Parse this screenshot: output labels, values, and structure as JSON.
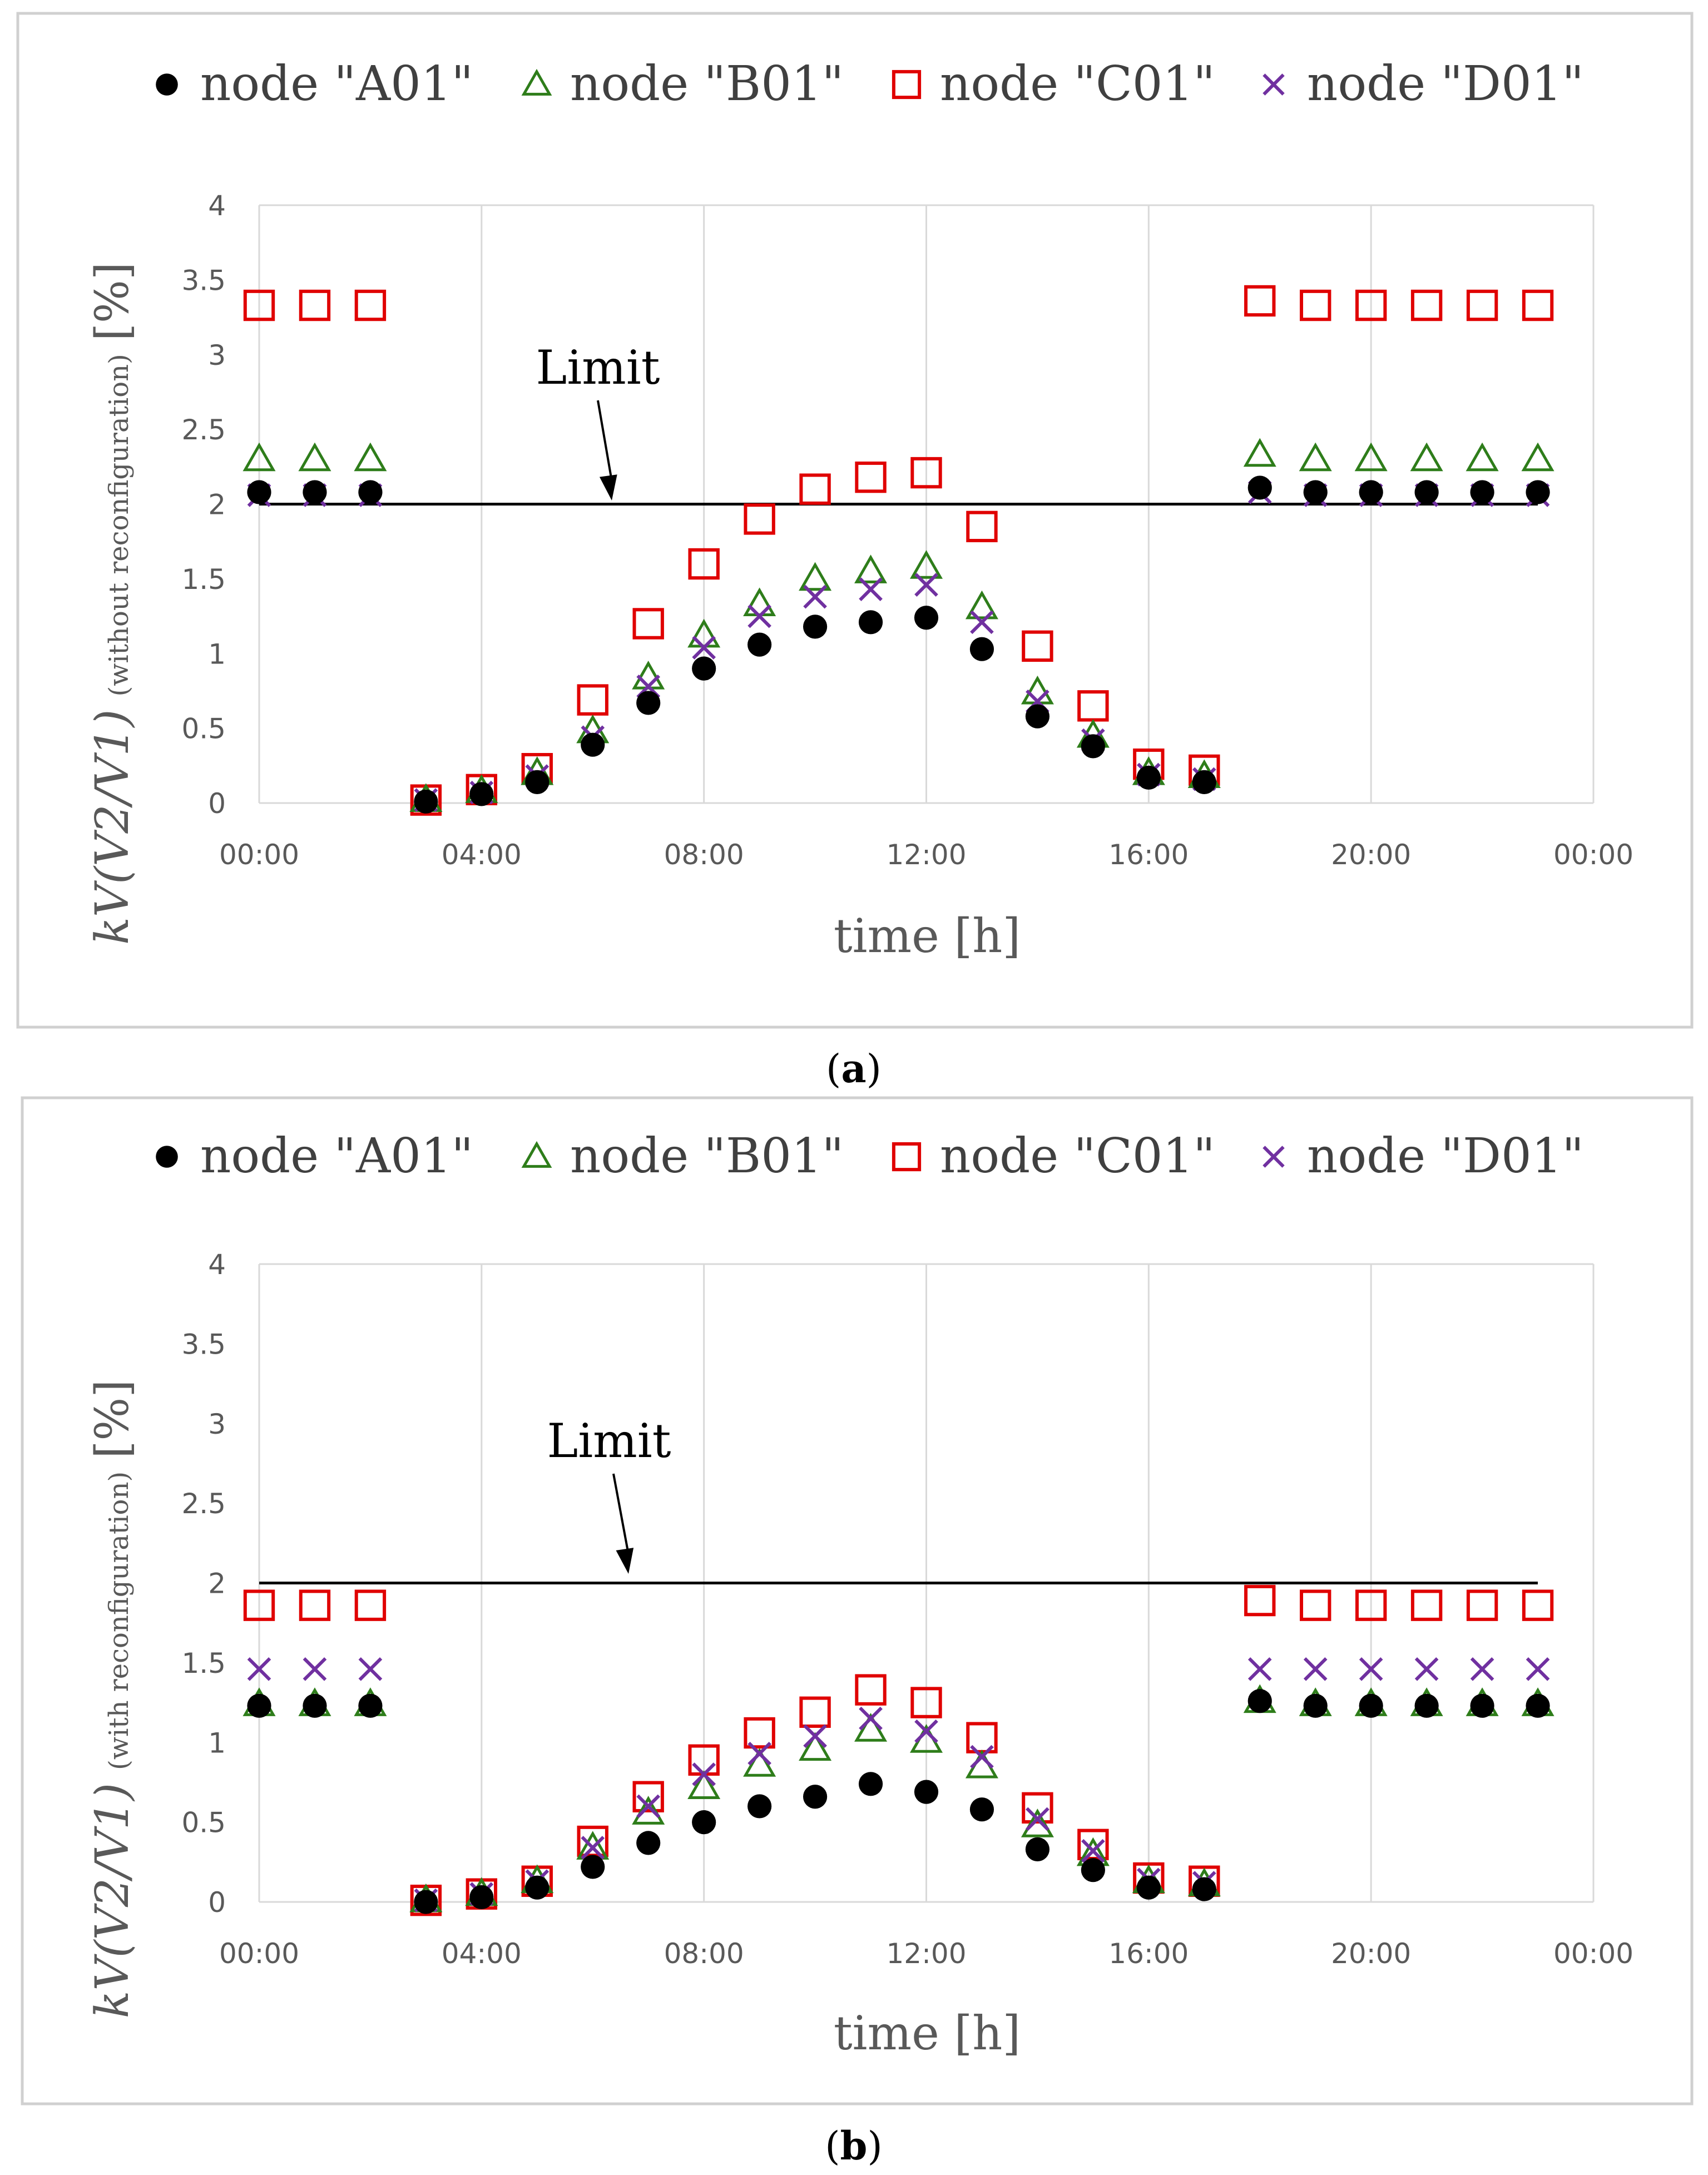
{
  "colors": {
    "A01": "#000000",
    "B01": "#2e7d1a",
    "C01": "#e00000",
    "D01": "#7030a0",
    "grid": "#d9d9d9",
    "axis_text": "#595959",
    "frame": "#d0d0d0",
    "limit_line": "#000000"
  },
  "chart_data": [
    {
      "type": "scatter",
      "panel_label": "a",
      "xlabel": "time [h]",
      "ylabel": "kV(V2/V1)",
      "ylabel_qualifier": "(without reconfiguration)",
      "ylabel_unit": "[%]",
      "x_ticks": [
        "00:00",
        "04:00",
        "08:00",
        "12:00",
        "16:00",
        "20:00",
        "00:00"
      ],
      "xlim": [
        0,
        24
      ],
      "ylim": [
        0,
        4
      ],
      "y_ticks": [
        "0",
        "0.5",
        "1",
        "1.5",
        "2",
        "2.5",
        "3",
        "3.5",
        "4"
      ],
      "grid": "vertical",
      "limit": {
        "label": "Limit",
        "value": 2
      },
      "x": [
        0,
        1,
        2,
        3,
        4,
        5,
        6,
        7,
        8,
        9,
        10,
        11,
        12,
        13,
        14,
        15,
        16,
        17,
        18,
        19,
        20,
        21,
        22,
        23
      ],
      "series": [
        {
          "name": "node \"A01\"",
          "key": "A01",
          "marker": "circle",
          "values": [
            2.08,
            2.08,
            2.08,
            0.01,
            0.06,
            0.14,
            0.39,
            0.67,
            0.9,
            1.06,
            1.18,
            1.21,
            1.24,
            1.03,
            0.58,
            0.38,
            0.17,
            0.14,
            2.11,
            2.08,
            2.08,
            2.08,
            2.08,
            2.08
          ]
        },
        {
          "name": "node \"B01\"",
          "key": "B01",
          "marker": "triangle",
          "values": [
            2.3,
            2.3,
            2.3,
            0.02,
            0.08,
            0.2,
            0.48,
            0.84,
            1.12,
            1.33,
            1.5,
            1.55,
            1.58,
            1.31,
            0.74,
            0.45,
            0.2,
            0.18,
            2.33,
            2.3,
            2.3,
            2.3,
            2.3,
            2.3
          ]
        },
        {
          "name": "node \"C01\"",
          "key": "C01",
          "marker": "square",
          "values": [
            3.33,
            3.33,
            3.33,
            0.02,
            0.09,
            0.23,
            0.69,
            1.2,
            1.6,
            1.9,
            2.1,
            2.18,
            2.21,
            1.85,
            1.05,
            0.65,
            0.26,
            0.22,
            3.36,
            3.33,
            3.33,
            3.33,
            3.33,
            3.33
          ]
        },
        {
          "name": "node \"D01\"",
          "key": "D01",
          "marker": "cross",
          "values": [
            2.06,
            2.06,
            2.06,
            0.02,
            0.07,
            0.18,
            0.44,
            0.78,
            1.04,
            1.25,
            1.38,
            1.43,
            1.46,
            1.21,
            0.68,
            0.42,
            0.19,
            0.16,
            2.08,
            2.06,
            2.06,
            2.06,
            2.06,
            2.06
          ]
        }
      ]
    },
    {
      "type": "scatter",
      "panel_label": "b",
      "xlabel": "time [h]",
      "ylabel": "kV(V2/V1)",
      "ylabel_qualifier": "(with reconfiguration)",
      "ylabel_unit": "[%]",
      "x_ticks": [
        "00:00",
        "04:00",
        "08:00",
        "12:00",
        "16:00",
        "20:00",
        "00:00"
      ],
      "xlim": [
        0,
        24
      ],
      "ylim": [
        0,
        4
      ],
      "y_ticks": [
        "0",
        "0.5",
        "1",
        "1.5",
        "2",
        "2.5",
        "3",
        "3.5",
        "4"
      ],
      "grid": "vertical",
      "limit": {
        "label": "Limit",
        "value": 2
      },
      "x": [
        0,
        1,
        2,
        3,
        4,
        5,
        6,
        7,
        8,
        9,
        10,
        11,
        12,
        13,
        14,
        15,
        16,
        17,
        18,
        19,
        20,
        21,
        22,
        23
      ],
      "series": [
        {
          "name": "node \"A01\"",
          "key": "A01",
          "marker": "circle",
          "values": [
            1.23,
            1.23,
            1.23,
            0.0,
            0.03,
            0.09,
            0.22,
            0.37,
            0.5,
            0.6,
            0.66,
            0.74,
            0.69,
            0.58,
            0.33,
            0.2,
            0.09,
            0.08,
            1.26,
            1.23,
            1.23,
            1.23,
            1.23,
            1.23
          ]
        },
        {
          "name": "node \"B01\"",
          "key": "B01",
          "marker": "triangle",
          "values": [
            1.24,
            1.24,
            1.24,
            0.01,
            0.05,
            0.13,
            0.34,
            0.56,
            0.72,
            0.86,
            0.96,
            1.08,
            1.01,
            0.85,
            0.48,
            0.3,
            0.13,
            0.11,
            1.26,
            1.24,
            1.24,
            1.24,
            1.24,
            1.24
          ]
        },
        {
          "name": "node \"C01\"",
          "key": "C01",
          "marker": "square",
          "values": [
            1.86,
            1.86,
            1.86,
            0.01,
            0.05,
            0.13,
            0.38,
            0.66,
            0.89,
            1.06,
            1.19,
            1.33,
            1.25,
            1.03,
            0.59,
            0.36,
            0.15,
            0.13,
            1.89,
            1.86,
            1.86,
            1.86,
            1.86,
            1.86
          ]
        },
        {
          "name": "node \"D01\"",
          "key": "D01",
          "marker": "cross",
          "values": [
            1.46,
            1.46,
            1.46,
            0.01,
            0.05,
            0.13,
            0.34,
            0.6,
            0.8,
            0.93,
            1.04,
            1.15,
            1.07,
            0.91,
            0.52,
            0.32,
            0.14,
            0.12,
            1.46,
            1.46,
            1.46,
            1.46,
            1.46,
            1.46
          ]
        }
      ]
    }
  ]
}
